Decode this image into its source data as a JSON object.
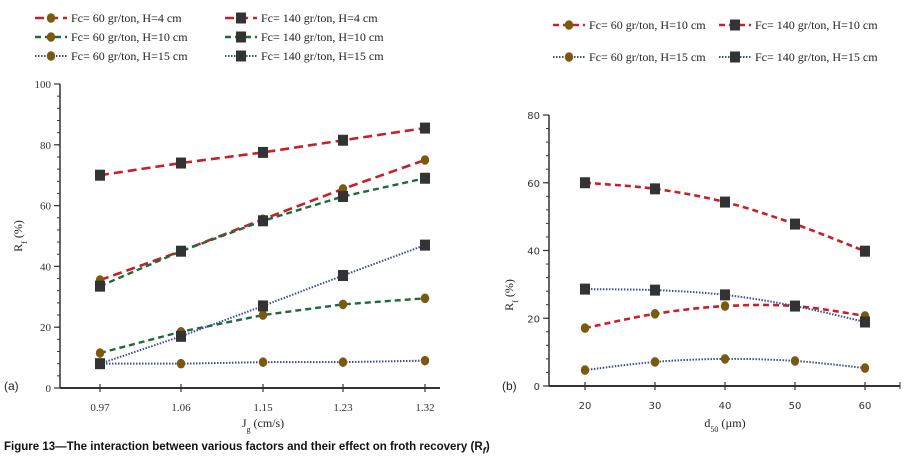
{
  "caption": {
    "text": "Figure 13—The interaction between various factors and their effect on froth recovery",
    "symbol": "(R",
    "symbol_sub": "f",
    "symbol_close": ")"
  },
  "styles": {
    "red": "#c8202a",
    "green": "#1e6b3a",
    "blue": "#3a4f8c",
    "circle_marker": "#7a5a10",
    "square_marker": "#333333",
    "axis": "#333333"
  },
  "chart_data": [
    {
      "id": "a",
      "panel_label": "(a)",
      "type": "line",
      "title": "",
      "xlabel": "J",
      "xlabel_sub": "g",
      "xlabel_unit": " (cm/s)",
      "ylabel": "R",
      "ylabel_sub": "f",
      "ylabel_unit": " (%)",
      "x": [
        0.97,
        1.06,
        1.15,
        1.23,
        1.32
      ],
      "x_tick_labels": [
        "0.97",
        "1.06",
        "1.15",
        "1.23",
        "1.32"
      ],
      "ylim": [
        0,
        100
      ],
      "y_ticks": [
        0,
        20,
        40,
        60,
        80,
        100
      ],
      "y_minor_step": 4,
      "grid": false,
      "legend_position": "top",
      "series": [
        {
          "name": "Fc= 60 gr/ton, H=4 cm",
          "line": "red-longdash",
          "marker": "circle",
          "values": [
            35.5,
            45,
            55.5,
            65.5,
            75
          ]
        },
        {
          "name": "Fc= 140 gr/ton, H=4 cm",
          "line": "red-longdash",
          "marker": "square",
          "values": [
            70,
            74,
            77.5,
            81.5,
            85.5
          ]
        },
        {
          "name": "Fc= 60 gr/ton, H=10 cm",
          "line": "green-dash",
          "marker": "circle",
          "values": [
            11.5,
            18.5,
            24,
            27.5,
            29.5
          ]
        },
        {
          "name": "Fc= 140 gr/ton, H=10 cm",
          "line": "green-dash",
          "marker": "square",
          "values": [
            33.5,
            45,
            55,
            63,
            69
          ]
        },
        {
          "name": "Fc= 60 gr/ton, H=15 cm",
          "line": "blue-dot",
          "marker": "circle",
          "values": [
            8,
            8,
            8.5,
            8.5,
            9
          ]
        },
        {
          "name": "Fc= 140 gr/ton, H=15 cm",
          "line": "blue-dot",
          "marker": "square",
          "values": [
            8,
            17,
            27,
            37,
            47
          ]
        }
      ]
    },
    {
      "id": "b",
      "panel_label": "(b)",
      "type": "line",
      "title": "",
      "xlabel": "d",
      "xlabel_sub": "50",
      "xlabel_unit": " (µm)",
      "ylabel": "R",
      "ylabel_sub": "f",
      "ylabel_unit": " (%)",
      "x": [
        20,
        30,
        40,
        50,
        60
      ],
      "x_tick_labels": [
        "20",
        "30",
        "40",
        "50",
        "60"
      ],
      "ylim": [
        0,
        80
      ],
      "y_ticks": [
        0,
        20,
        40,
        60,
        80
      ],
      "y_minor_step": 4,
      "grid": false,
      "legend_position": "top",
      "series": [
        {
          "name": "Fc= 60 gr/ton, H=10 cm",
          "line": "red-dash",
          "marker": "circle",
          "values": [
            17.1,
            21.3,
            23.6,
            23.6,
            20.7
          ]
        },
        {
          "name": "Fc= 140 gr/ton, H=10 cm",
          "line": "red-dash",
          "marker": "square",
          "values": [
            60,
            58.2,
            54.3,
            47.8,
            39.8
          ]
        },
        {
          "name": "Fc= 60 gr/ton, H=15 cm",
          "line": "blue-dot",
          "marker": "circle",
          "values": [
            4.7,
            7.1,
            8.0,
            7.4,
            5.3
          ]
        },
        {
          "name": "Fc= 140 gr/ton, H=15 cm",
          "line": "blue-dot",
          "marker": "square",
          "values": [
            28.6,
            28.3,
            26.9,
            23.6,
            18.9
          ]
        }
      ]
    }
  ]
}
